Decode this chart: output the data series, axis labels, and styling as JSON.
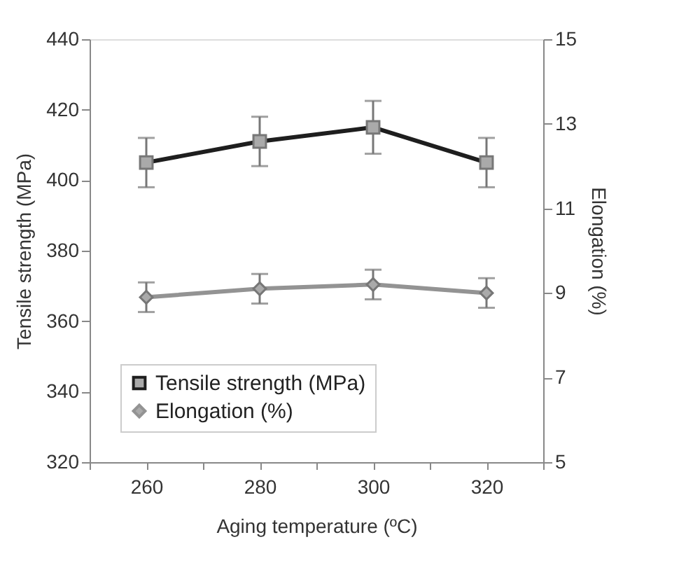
{
  "chart_data": {
    "type": "line",
    "xlabel": "Aging temperature (ºC)",
    "ylabel": "Tensile strength (MPa)",
    "y2label": "Elongation (%)",
    "x": [
      260,
      280,
      300,
      320
    ],
    "series": [
      {
        "name": "Tensile strength (MPa)",
        "color": "#1e1e1e",
        "marker": "square",
        "values": [
          405,
          411,
          415,
          405
        ],
        "errors": [
          7,
          7,
          7.5,
          7
        ]
      },
      {
        "name": "Elongation (%)",
        "color": "#939393",
        "marker": "diamond",
        "axis": "y2",
        "values": [
          8.9,
          9.1,
          9.2,
          9.0
        ],
        "errors": [
          0.35,
          0.35,
          0.35,
          0.35
        ]
      }
    ],
    "xlim": [
      250,
      330
    ],
    "xticks": [
      {
        "value": 250,
        "label": null
      },
      260,
      {
        "value": 270,
        "label": null
      },
      280,
      {
        "value": 290,
        "label": null
      },
      300,
      {
        "value": 310,
        "label": null
      },
      320,
      {
        "value": 330,
        "label": null
      }
    ],
    "ylim": [
      320,
      440
    ],
    "yticks": [
      320,
      340,
      360,
      380,
      400,
      420,
      440
    ],
    "y2lim": [
      5,
      15
    ],
    "y2ticks": [
      5,
      7,
      9,
      11,
      13,
      15
    ],
    "grid": false,
    "legend": "bottom",
    "line_style": "solid"
  }
}
